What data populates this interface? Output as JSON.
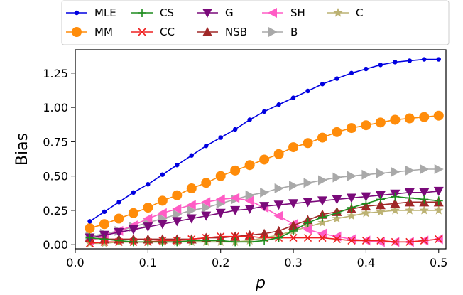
{
  "chart_data": {
    "type": "line",
    "xlabel": "p",
    "ylabel": "Bias",
    "xlim": [
      0.0,
      0.51
    ],
    "ylim": [
      -0.03,
      1.42
    ],
    "xticks": [
      "0.0",
      "0.1",
      "0.2",
      "0.3",
      "0.4",
      "0.5"
    ],
    "yticks": [
      "0.00",
      "0.25",
      "0.50",
      "0.75",
      "1.00",
      "1.25"
    ],
    "grid": false,
    "legend_position": "top, outside plot, 6 columns",
    "x": [
      0.02,
      0.04,
      0.06,
      0.08,
      0.1,
      0.12,
      0.14,
      0.16,
      0.18,
      0.2,
      0.22,
      0.24,
      0.26,
      0.28,
      0.3,
      0.32,
      0.34,
      0.36,
      0.38,
      0.4,
      0.42,
      0.44,
      0.46,
      0.48,
      0.5
    ],
    "series": [
      {
        "name": "MLE",
        "color": "#0000e0",
        "marker": "circle",
        "values": [
          0.17,
          0.24,
          0.31,
          0.38,
          0.44,
          0.51,
          0.58,
          0.65,
          0.72,
          0.78,
          0.84,
          0.91,
          0.97,
          1.02,
          1.07,
          1.12,
          1.17,
          1.21,
          1.25,
          1.28,
          1.31,
          1.33,
          1.34,
          1.35,
          1.35
        ]
      },
      {
        "name": "MM",
        "color": "#ff8c0a",
        "marker": "big-circle",
        "values": [
          0.12,
          0.15,
          0.19,
          0.23,
          0.27,
          0.32,
          0.36,
          0.41,
          0.45,
          0.5,
          0.54,
          0.58,
          0.62,
          0.66,
          0.71,
          0.74,
          0.78,
          0.82,
          0.85,
          0.87,
          0.89,
          0.91,
          0.92,
          0.93,
          0.94
        ]
      },
      {
        "name": "CS",
        "color": "#1e8c1e",
        "marker": "plus",
        "values": [
          0.05,
          0.04,
          0.03,
          0.02,
          0.02,
          0.02,
          0.02,
          0.03,
          0.03,
          0.03,
          0.02,
          0.02,
          0.03,
          0.05,
          0.1,
          0.16,
          0.2,
          0.23,
          0.27,
          0.3,
          0.33,
          0.35,
          0.34,
          0.33,
          0.32
        ]
      },
      {
        "name": "CC",
        "color": "#ee2020",
        "marker": "x",
        "values": [
          0.01,
          0.02,
          0.02,
          0.02,
          0.02,
          0.03,
          0.03,
          0.04,
          0.05,
          0.06,
          0.06,
          0.06,
          0.05,
          0.05,
          0.05,
          0.05,
          0.05,
          0.04,
          0.03,
          0.03,
          0.03,
          0.02,
          0.02,
          0.03,
          0.04
        ]
      },
      {
        "name": "G",
        "color": "#7a0a7a",
        "marker": "triangle-down",
        "values": [
          0.05,
          0.07,
          0.09,
          0.11,
          0.13,
          0.15,
          0.17,
          0.19,
          0.21,
          0.23,
          0.25,
          0.26,
          0.28,
          0.29,
          0.3,
          0.31,
          0.32,
          0.33,
          0.34,
          0.35,
          0.36,
          0.37,
          0.38,
          0.38,
          0.39
        ]
      },
      {
        "name": "NSB",
        "color": "#a02828",
        "marker": "triangle-up",
        "values": [
          0.05,
          0.04,
          0.04,
          0.04,
          0.04,
          0.04,
          0.04,
          0.04,
          0.05,
          0.05,
          0.06,
          0.07,
          0.08,
          0.1,
          0.14,
          0.18,
          0.22,
          0.24,
          0.26,
          0.28,
          0.29,
          0.3,
          0.31,
          0.31,
          0.31
        ]
      },
      {
        "name": "SH",
        "color": "#ff5cc5",
        "marker": "triangle-left",
        "values": [
          0.03,
          0.06,
          0.1,
          0.14,
          0.19,
          0.23,
          0.26,
          0.29,
          0.31,
          0.33,
          0.34,
          0.32,
          0.27,
          0.21,
          0.15,
          0.11,
          0.08,
          0.06,
          0.04,
          0.03,
          0.02,
          0.02,
          0.02,
          0.03,
          0.04
        ]
      },
      {
        "name": "B",
        "color": "#a9a9a9",
        "marker": "triangle-right",
        "values": [
          0.06,
          0.08,
          0.1,
          0.13,
          0.16,
          0.19,
          0.22,
          0.25,
          0.27,
          0.3,
          0.33,
          0.36,
          0.38,
          0.41,
          0.43,
          0.45,
          0.47,
          0.49,
          0.5,
          0.51,
          0.52,
          0.53,
          0.54,
          0.55,
          0.55
        ]
      },
      {
        "name": "C",
        "color": "#bcb273",
        "marker": "star",
        "values": [
          0.01,
          0.01,
          0.02,
          0.02,
          0.02,
          0.02,
          0.02,
          0.02,
          0.02,
          0.02,
          0.02,
          0.03,
          0.05,
          0.07,
          0.1,
          0.13,
          0.16,
          0.19,
          0.21,
          0.23,
          0.24,
          0.25,
          0.25,
          0.25,
          0.25
        ]
      }
    ]
  }
}
